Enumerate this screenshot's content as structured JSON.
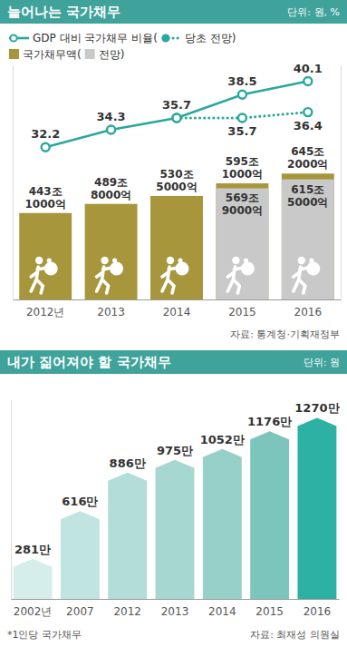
{
  "chart_data": [
    {
      "type": "bar",
      "title": "늘어나는 국가채무",
      "subtitle": "단위: 원, %",
      "annotations": [
        "자료: 통계청·기획재정부"
      ],
      "categories": [
        "2012년",
        "2013",
        "2014",
        "2015",
        "2016"
      ],
      "ylim": [
        0,
        1200
      ],
      "y2lim": [
        14,
        42
      ],
      "tick_labels": "x",
      "data_labels": true,
      "stacked": false,
      "legend": "top-left",
      "series": [
        {
          "name": "국가채무액(",
          "type": "bar",
          "color": "#a8963c",
          "values": [
            443.1,
            489.8,
            530.5,
            595.1,
            645.2
          ],
          "value_labels": [
            "443조 1000억",
            "489조 8000억",
            "530조 5000억",
            "595조 1000억",
            "645조 2000억"
          ]
        },
        {
          "name": "전망)",
          "type": "bar",
          "color": "#c9c9c9",
          "values": [
            null,
            null,
            null,
            569.9,
            615.5
          ],
          "value_labels": [
            null,
            null,
            null,
            "569조 9000억",
            "615조 5000억"
          ]
        },
        {
          "name": "GDP 대비 국가채무 비율(",
          "type": "line",
          "axis": "y2",
          "color": "#2aa89b",
          "marker": "circle",
          "line_style": "solid",
          "values": [
            32.2,
            34.3,
            35.7,
            38.5,
            40.1
          ]
        },
        {
          "name": "당초 전망)",
          "type": "line",
          "axis": "y2",
          "color": "#2aa89b",
          "marker": "circle",
          "line_style": "dotted",
          "values": [
            null,
            null,
            35.7,
            35.7,
            36.4
          ],
          "value_labels": [
            null,
            null,
            null,
            "35.7",
            "36.4"
          ]
        }
      ]
    },
    {
      "type": "bar",
      "title": "내가 짊어져야 할 국가채무",
      "subtitle": "단위: 원",
      "annotations": [
        "*1인당 국가채무",
        "자료: 최재성 의원실"
      ],
      "categories": [
        "2002년",
        "2007",
        "2012",
        "2013",
        "2014",
        "2015",
        "2016"
      ],
      "values": [
        281,
        616,
        886,
        975,
        1052,
        1176,
        1270
      ],
      "value_labels": [
        "281만",
        "616만",
        "886만",
        "975만",
        "1052만",
        "1176만",
        "1270만"
      ],
      "colors": [
        "#d6eeeb",
        "#c0e4e0",
        "#b3ddd8",
        "#a6d7d1",
        "#97d0c9",
        "#7cc5bc",
        "#2db1a4"
      ],
      "ylim": [
        0,
        1400
      ],
      "tick_labels": "x",
      "data_labels": true
    }
  ]
}
